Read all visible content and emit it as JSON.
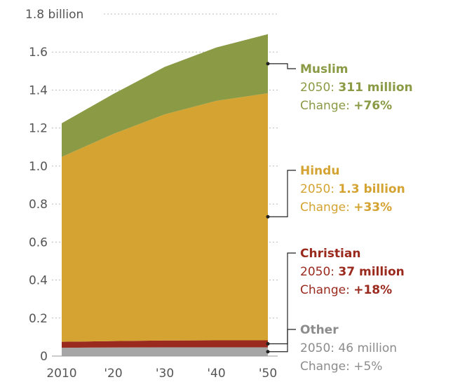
{
  "chart_data": {
    "type": "area",
    "stacked": true,
    "x": [
      "2010",
      "'20",
      "'30",
      "'40",
      "'50"
    ],
    "x_values": [
      2010,
      2020,
      2030,
      2040,
      2050
    ],
    "ylim": [
      0,
      1.8
    ],
    "y_ticks": [
      "0",
      "0.2",
      "0.4",
      "0.6",
      "0.8",
      "1.0",
      "1.2",
      "1.4",
      "1.6",
      "1.8 billion"
    ],
    "y_tick_values": [
      0,
      0.2,
      0.4,
      0.6,
      0.8,
      1.0,
      1.2,
      1.4,
      1.6,
      1.8
    ],
    "grid": true,
    "series": [
      {
        "name": "Other",
        "color": "#a6a6a6",
        "values": [
          0.044,
          0.045,
          0.046,
          0.046,
          0.046
        ],
        "label": {
          "value_prefix": "2050: ",
          "value": "46 million",
          "change_prefix": "Change: ",
          "change": "+5%"
        }
      },
      {
        "name": "Christian",
        "color": "#9a2a1e",
        "values": [
          0.031,
          0.034,
          0.036,
          0.037,
          0.037
        ],
        "label": {
          "value_prefix": "2050: ",
          "value": "37 million",
          "change_prefix": "Change: ",
          "change": "+18%"
        }
      },
      {
        "name": "Hindu",
        "color": "#d4a331",
        "values": [
          0.973,
          1.09,
          1.19,
          1.26,
          1.3
        ],
        "label": {
          "value_prefix": "2050: ",
          "value": "1.3 billion",
          "change_prefix": "Change: ",
          "change": "+33%"
        }
      },
      {
        "name": "Muslim",
        "color": "#8a9a45",
        "values": [
          0.177,
          0.21,
          0.25,
          0.281,
          0.311
        ],
        "label": {
          "value_prefix": "2050: ",
          "value": "311 million",
          "change_prefix": "Change: ",
          "change": "+76%"
        }
      }
    ]
  }
}
